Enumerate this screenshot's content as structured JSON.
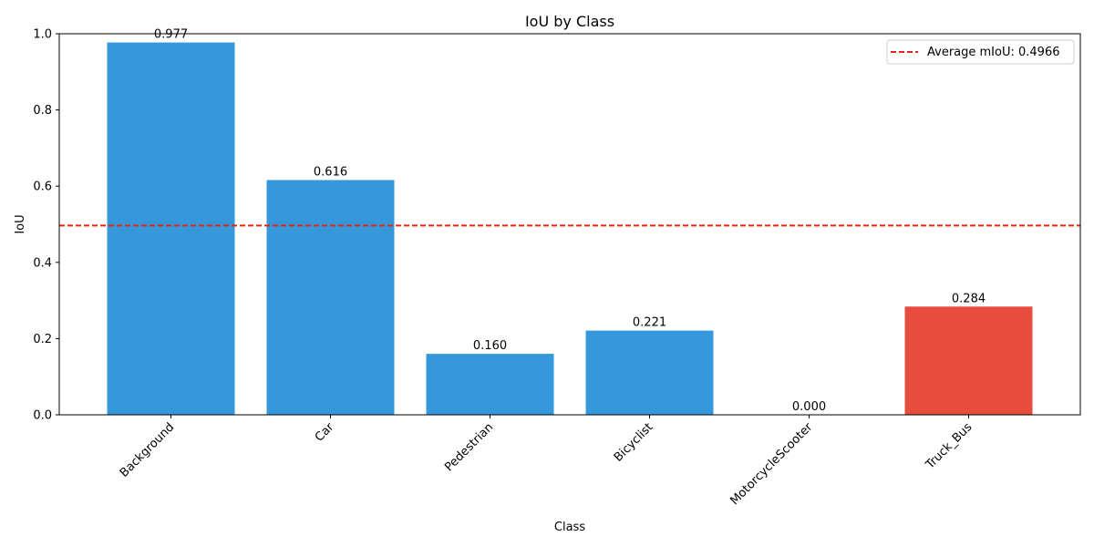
{
  "chart_data": {
    "type": "bar",
    "title": "IoU by Class",
    "xlabel": "Class",
    "ylabel": "IoU",
    "categories": [
      "Background",
      "Car",
      "Pedestrian",
      "Bicyclist",
      "MotorcycleScooter",
      "Truck_Bus"
    ],
    "values": [
      0.977,
      0.616,
      0.16,
      0.221,
      0.0,
      0.284
    ],
    "data_labels": [
      "0.977",
      "0.616",
      "0.160",
      "0.221",
      "0.000",
      "0.284"
    ],
    "bar_colors": [
      "#3498db",
      "#3498db",
      "#3498db",
      "#3498db",
      "#3498db",
      "#e74c3c"
    ],
    "ylim": [
      0,
      1.0
    ],
    "yticks": [
      0.0,
      0.2,
      0.4,
      0.6,
      0.8,
      1.0
    ],
    "ytick_labels": [
      "0.0",
      "0.2",
      "0.4",
      "0.6",
      "0.8",
      "1.0"
    ],
    "xtick_rotation_deg": 45,
    "grid": false,
    "reference_line": {
      "value": 0.4966,
      "label": "Average mIoU: 0.4966",
      "color": "#e8231b",
      "style": "dashed"
    },
    "legend": {
      "placement": "top-right"
    }
  }
}
